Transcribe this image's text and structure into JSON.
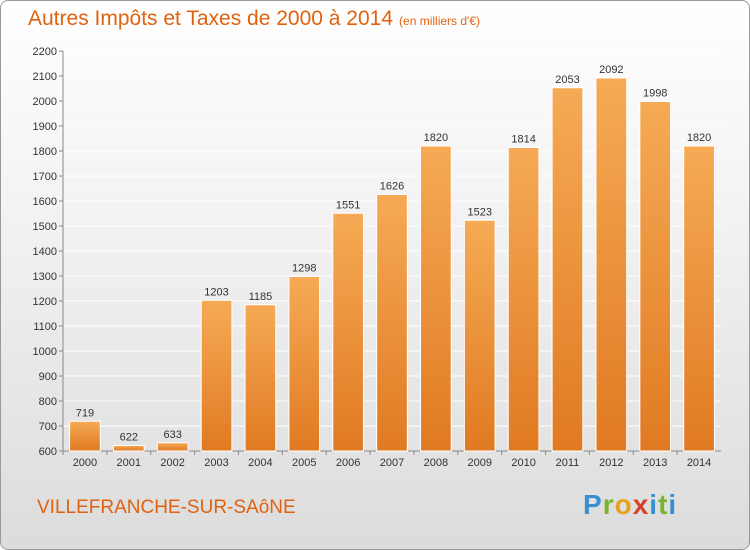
{
  "title": {
    "main": "Autres Impôts et Taxes de 2000 à 2014",
    "unit": "(en milliers d'€)"
  },
  "city": "VILLEFRANCHE-SUR-SAôNE",
  "logo": {
    "text": "Proxiti",
    "letters": [
      "P",
      "r",
      "o",
      "x",
      "i",
      "t",
      "i"
    ],
    "colors": [
      "#3a8fd0",
      "#7ab32e",
      "#e8a020",
      "#d8402a",
      "#3a8fd0",
      "#7ab32e",
      "#3a8fd0"
    ]
  },
  "colors": {
    "accent": "#e0620f",
    "bar_light": "#f6aa55",
    "bar_dark": "#e07a22",
    "grid": "#ffffff"
  },
  "chart_data": {
    "type": "bar",
    "title": "Autres Impôts et Taxes de 2000 à 2014",
    "categories": [
      "2000",
      "2001",
      "2002",
      "2003",
      "2004",
      "2005",
      "2006",
      "2007",
      "2008",
      "2009",
      "2010",
      "2011",
      "2012",
      "2013",
      "2014"
    ],
    "values": [
      719,
      622,
      633,
      1203,
      1185,
      1298,
      1551,
      1626,
      1820,
      1523,
      1814,
      2053,
      2092,
      1998,
      1820
    ],
    "ylim": [
      600,
      2200
    ],
    "yticks": [
      600,
      700,
      800,
      900,
      1000,
      1100,
      1200,
      1300,
      1400,
      1500,
      1600,
      1700,
      1800,
      1900,
      2000,
      2100,
      2200
    ],
    "grid": true,
    "xlabel": "",
    "ylabel": ""
  }
}
